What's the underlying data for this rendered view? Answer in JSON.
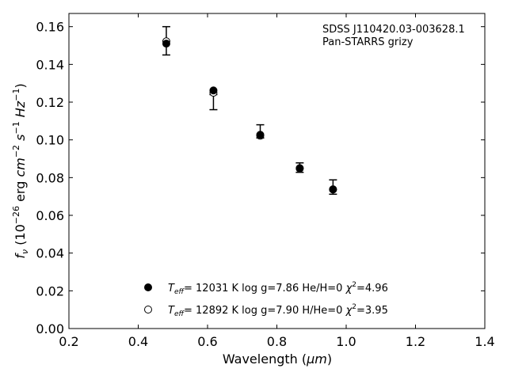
{
  "chart_data": {
    "type": "scatter",
    "title": "",
    "xlabel_prefix": "Wavelength (",
    "xlabel_unit": "μm",
    "xlabel_suffix": ")",
    "ylabel": "f_ν (10^−26 erg cm^−2 s^−1 Hz^−1)",
    "xlim": [
      0.2,
      1.4
    ],
    "ylim": [
      0.0,
      0.167
    ],
    "xticks": [
      0.2,
      0.4,
      0.6,
      0.8,
      1.0,
      1.2,
      1.4
    ],
    "xtick_labels": [
      "0.2",
      "0.4",
      "0.6",
      "0.8",
      "1.0",
      "1.2",
      "1.4"
    ],
    "yticks": [
      0.0,
      0.02,
      0.04,
      0.06,
      0.08,
      0.1,
      0.12,
      0.14,
      0.16
    ],
    "ytick_labels": [
      "0.00",
      "0.02",
      "0.04",
      "0.06",
      "0.08",
      "0.10",
      "0.12",
      "0.14",
      "0.16"
    ],
    "grid": false,
    "annotation_lines": [
      "SDSS J110420.03-003628.1",
      "Pan-STARRS grizy"
    ],
    "observed": {
      "x": [
        0.481,
        0.617,
        0.752,
        0.866,
        0.962
      ],
      "y": [
        0.1525,
        0.12,
        0.1045,
        0.0853,
        0.075
      ],
      "yerr": [
        0.0075,
        0.004,
        0.0035,
        0.0025,
        0.0038
      ]
    },
    "series": [
      {
        "label_eff_subscript": "eff",
        "label_rest": "= 12031 K  log g=7.86  He/H=0  ",
        "label_chi": "χ",
        "label_chi_value": "=4.96",
        "marker": "filled-circle",
        "x": [
          0.481,
          0.617,
          0.752,
          0.866,
          0.962
        ],
        "y": [
          0.151,
          0.1262,
          0.1027,
          0.085,
          0.0737
        ]
      },
      {
        "label_eff_subscript": "eff",
        "label_rest": "= 12892 K  log g=7.90  H/He=0  ",
        "label_chi": "χ",
        "label_chi_value": "=3.95",
        "marker": "open-circle",
        "x": [
          0.481,
          0.617,
          0.752,
          0.866,
          0.962
        ],
        "y": [
          0.1522,
          0.125,
          0.1022,
          0.0848,
          0.0738
        ]
      }
    ],
    "legend_placement": "lower-center",
    "colors": {
      "marker": "#000000",
      "axis": "#000000",
      "background": "#ffffff"
    }
  }
}
